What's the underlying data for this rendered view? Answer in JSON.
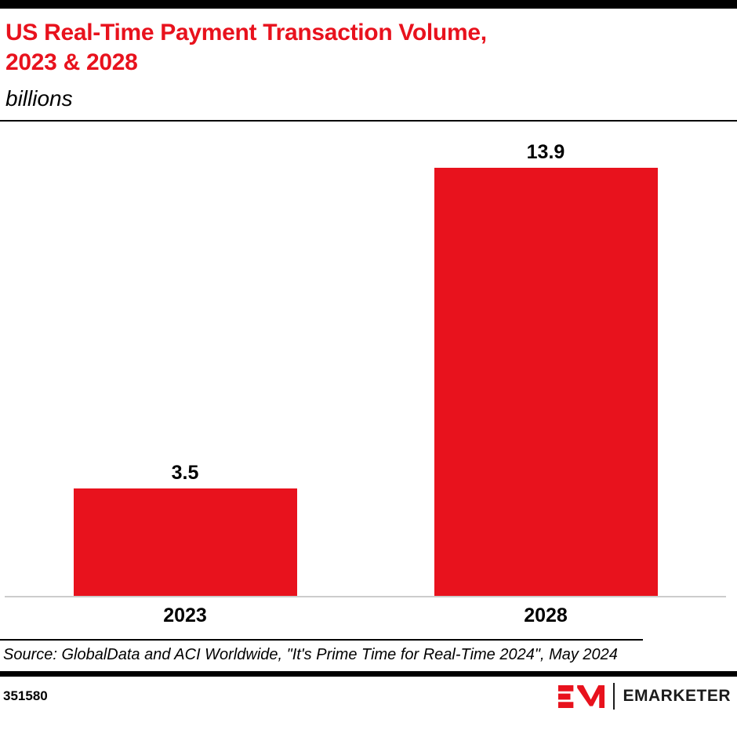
{
  "header": {
    "title_line1": "US Real-Time Payment Transaction Volume,",
    "title_line2": "2023 & 2028",
    "subtitle": "billions"
  },
  "chart_data": {
    "type": "bar",
    "title": "US Real-Time Payment Transaction Volume, 2023 & 2028",
    "subtitle": "billions",
    "categories": [
      "2023",
      "2028"
    ],
    "values": [
      3.5,
      13.9
    ],
    "value_labels": [
      "3.5",
      "13.9"
    ],
    "xlabel": "",
    "ylabel": "",
    "ylim": [
      0,
      15.4
    ],
    "grid": false,
    "legend": false,
    "bar_color": "#e8121d"
  },
  "footer": {
    "source": "Source: GlobalData and ACI Worldwide, \"It's Prime Time for Real-Time 2024\", May 2024",
    "chart_id": "351580",
    "brand": "EMARKETER"
  },
  "colors": {
    "accent_red": "#e8121d",
    "axis_gray": "#cccccc",
    "bar_black": "#000000"
  }
}
